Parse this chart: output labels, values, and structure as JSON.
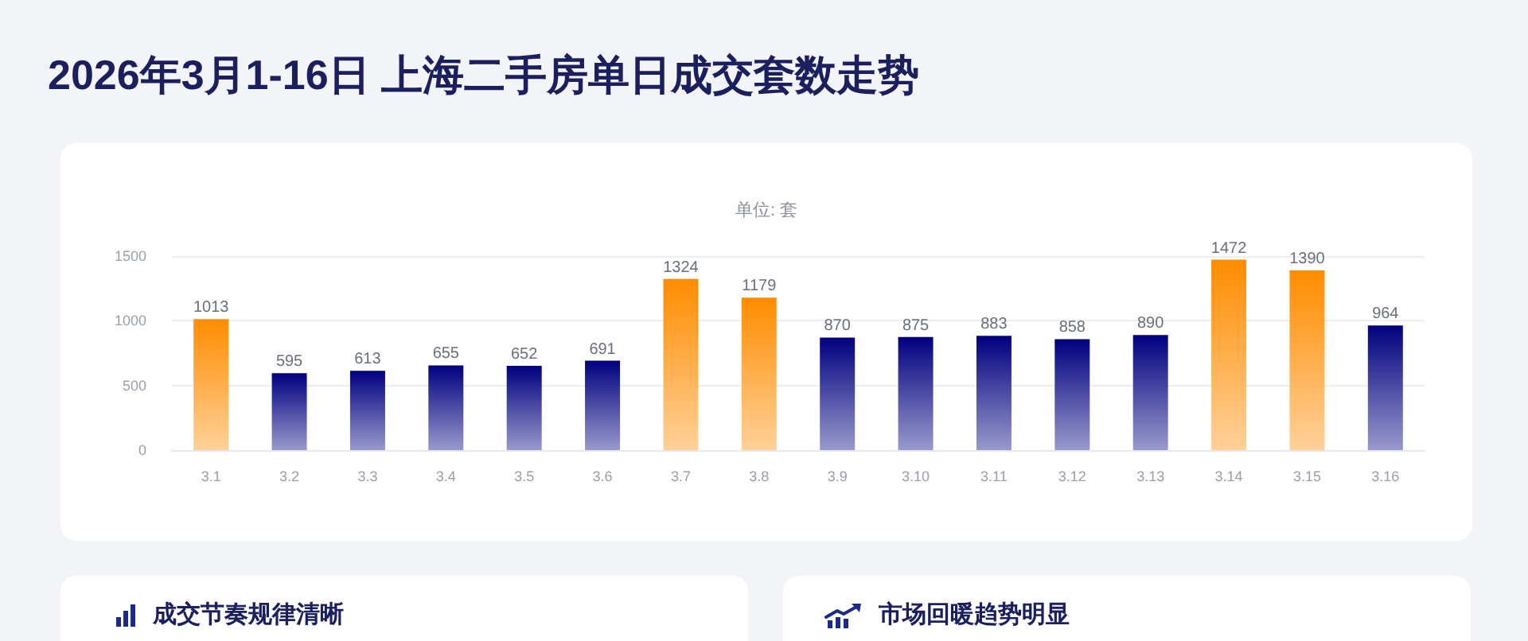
{
  "chart_data": {
    "type": "bar",
    "title": "2026年3月1-16日 上海二手房单日成交套数走势",
    "subtitle": "单位: 套",
    "categories": [
      "3.1",
      "3.2",
      "3.3",
      "3.4",
      "3.5",
      "3.6",
      "3.7",
      "3.8",
      "3.9",
      "3.10",
      "3.11",
      "3.12",
      "3.13",
      "3.14",
      "3.15",
      "3.16"
    ],
    "values": [
      1013,
      595,
      613,
      655,
      652,
      691,
      1324,
      1179,
      870,
      875,
      883,
      858,
      890,
      1472,
      1390,
      964
    ],
    "colors": [
      "#ff8c00",
      "#00007f",
      "#00007f",
      "#00007f",
      "#00007f",
      "#00007f",
      "#ff8c00",
      "#ff8c00",
      "#00007f",
      "#00007f",
      "#00007f",
      "#00007f",
      "#00007f",
      "#ff8c00",
      "#ff8c00",
      "#00007f"
    ],
    "ylim": [
      0,
      1500
    ],
    "yticks": [
      0,
      500,
      1000,
      1500
    ],
    "grid": "y",
    "data_labels": true,
    "annotations": [
      "成交节奏规律清晰",
      "市场回暖趋势明显"
    ]
  }
}
